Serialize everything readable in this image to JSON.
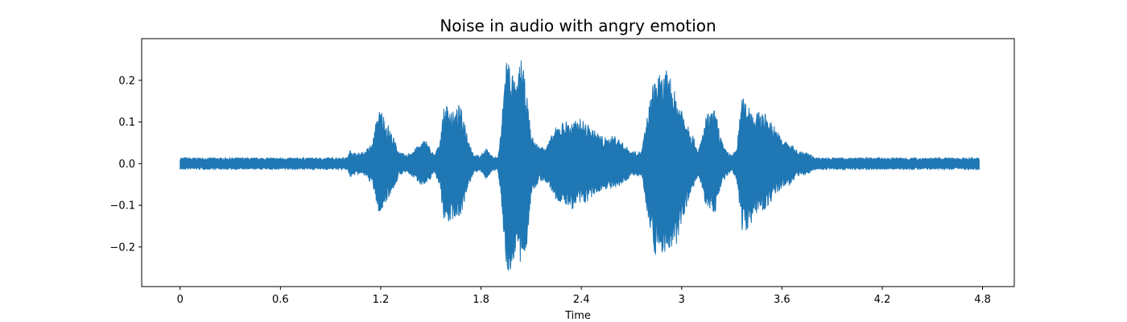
{
  "chart_data": {
    "type": "area",
    "title": "Noise in audio with angry emotion",
    "xlabel": "Time",
    "ylabel": "",
    "xlim": [
      -0.23,
      4.99
    ],
    "ylim": [
      -0.295,
      0.3
    ],
    "grid": false,
    "legend": "none",
    "x_ticks": [
      0,
      0.6,
      1.2,
      1.8,
      2.4,
      3.0,
      3.6,
      4.2,
      4.8
    ],
    "x_tick_labels": [
      "0",
      "0.6",
      "1.2",
      "1.8",
      "2.4",
      "3",
      "3.6",
      "4.2",
      "4.8"
    ],
    "y_ticks": [
      -0.2,
      -0.1,
      0.0,
      0.1,
      0.2
    ],
    "y_tick_labels": [
      "−0.2",
      "−0.1",
      "0.0",
      "0.1",
      "0.2"
    ],
    "series": [
      {
        "color": "#1f77b4",
        "x": [
          0.0,
          0.1,
          0.2,
          0.3,
          0.4,
          0.5,
          0.6,
          0.7,
          0.8,
          0.9,
          1.0,
          1.02,
          1.05,
          1.1,
          1.15,
          1.18,
          1.2,
          1.22,
          1.25,
          1.28,
          1.31,
          1.35,
          1.4,
          1.44,
          1.47,
          1.5,
          1.52,
          1.55,
          1.58,
          1.61,
          1.64,
          1.67,
          1.7,
          1.73,
          1.76,
          1.8,
          1.83,
          1.86,
          1.9,
          1.92,
          1.95,
          1.98,
          2.01,
          2.04,
          2.07,
          2.1,
          2.15,
          2.2,
          2.25,
          2.3,
          2.35,
          2.4,
          2.45,
          2.5,
          2.55,
          2.6,
          2.65,
          2.7,
          2.73,
          2.76,
          2.8,
          2.84,
          2.88,
          2.92,
          2.96,
          3.0,
          3.05,
          3.1,
          3.15,
          3.2,
          3.25,
          3.3,
          3.33,
          3.36,
          3.4,
          3.44,
          3.48,
          3.52,
          3.56,
          3.6,
          3.65,
          3.7,
          3.76,
          3.8,
          3.9,
          4.0,
          4.1,
          4.2,
          4.3,
          4.4,
          4.5,
          4.6,
          4.7,
          4.78
        ],
        "upper": [
          0.014,
          0.014,
          0.014,
          0.014,
          0.014,
          0.014,
          0.014,
          0.014,
          0.014,
          0.014,
          0.015,
          0.035,
          0.025,
          0.028,
          0.05,
          0.12,
          0.135,
          0.115,
          0.09,
          0.06,
          0.03,
          0.02,
          0.035,
          0.05,
          0.06,
          0.035,
          0.02,
          0.05,
          0.14,
          0.145,
          0.12,
          0.145,
          0.11,
          0.055,
          0.02,
          0.02,
          0.04,
          0.02,
          0.015,
          0.08,
          0.27,
          0.24,
          0.18,
          0.265,
          0.18,
          0.07,
          0.04,
          0.05,
          0.09,
          0.105,
          0.1,
          0.11,
          0.09,
          0.075,
          0.06,
          0.07,
          0.05,
          0.03,
          0.03,
          0.03,
          0.13,
          0.22,
          0.21,
          0.23,
          0.17,
          0.14,
          0.09,
          0.03,
          0.12,
          0.13,
          0.04,
          0.02,
          0.04,
          0.16,
          0.15,
          0.12,
          0.13,
          0.11,
          0.09,
          0.06,
          0.05,
          0.03,
          0.025,
          0.015,
          0.014,
          0.014,
          0.014,
          0.014,
          0.014,
          0.014,
          0.014,
          0.014,
          0.014,
          0.014
        ],
        "lower": [
          -0.014,
          -0.014,
          -0.014,
          -0.014,
          -0.014,
          -0.014,
          -0.014,
          -0.014,
          -0.014,
          -0.014,
          -0.015,
          -0.035,
          -0.025,
          -0.028,
          -0.05,
          -0.11,
          -0.13,
          -0.1,
          -0.08,
          -0.06,
          -0.03,
          -0.02,
          -0.035,
          -0.05,
          -0.055,
          -0.035,
          -0.02,
          -0.05,
          -0.14,
          -0.145,
          -0.13,
          -0.13,
          -0.1,
          -0.05,
          -0.02,
          -0.02,
          -0.04,
          -0.02,
          -0.015,
          -0.08,
          -0.26,
          -0.27,
          -0.2,
          -0.26,
          -0.21,
          -0.08,
          -0.04,
          -0.05,
          -0.09,
          -0.1,
          -0.11,
          -0.1,
          -0.09,
          -0.07,
          -0.06,
          -0.065,
          -0.05,
          -0.03,
          -0.03,
          -0.03,
          -0.13,
          -0.22,
          -0.22,
          -0.21,
          -0.22,
          -0.14,
          -0.08,
          -0.03,
          -0.11,
          -0.12,
          -0.04,
          -0.02,
          -0.04,
          -0.16,
          -0.16,
          -0.12,
          -0.12,
          -0.1,
          -0.08,
          -0.06,
          -0.05,
          -0.03,
          -0.025,
          -0.015,
          -0.014,
          -0.014,
          -0.014,
          -0.014,
          -0.014,
          -0.014,
          -0.014,
          -0.014,
          -0.014,
          -0.014
        ]
      }
    ]
  }
}
